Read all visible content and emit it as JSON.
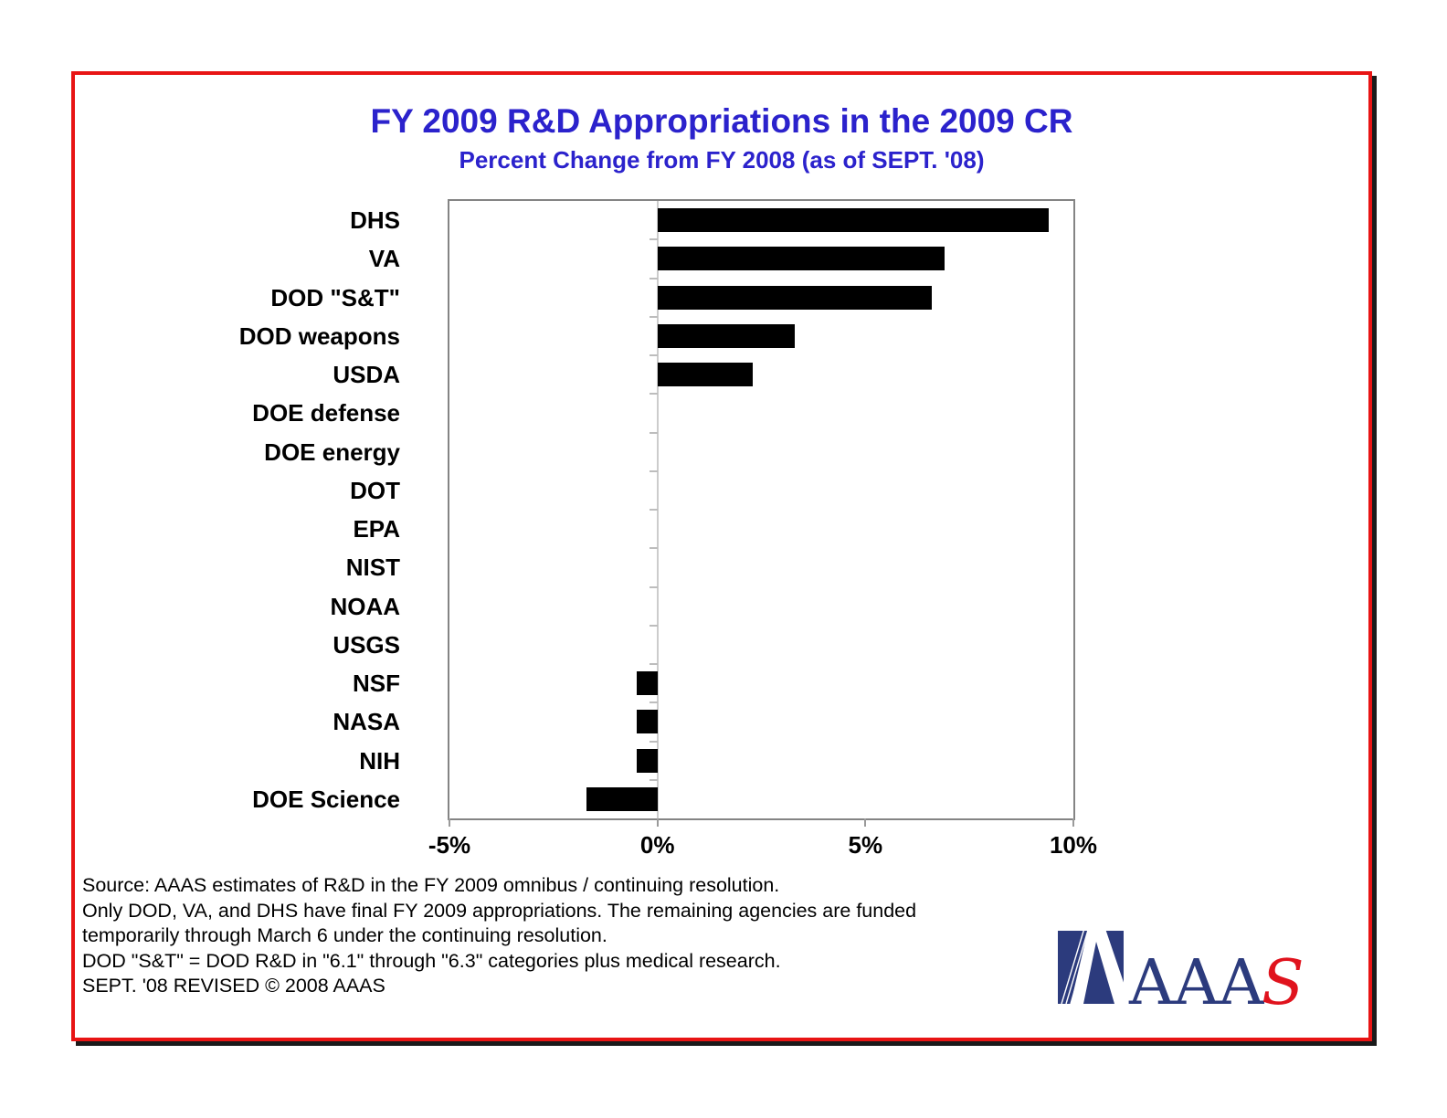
{
  "page": {
    "title": "FY 2009 R&D Appropriations in the 2009 CR",
    "subtitle": "Percent Change from FY 2008 (as of SEPT. '08)"
  },
  "colors": {
    "title_blue": "#2b22cc",
    "bar_black": "#000000",
    "frame_red": "#e81414",
    "plot_border_gray": "#848484",
    "zero_line_gray": "#cccccc",
    "logo_navy": "#2c3b7d",
    "logo_red": "#e0131d"
  },
  "chart_data": {
    "type": "bar",
    "orientation": "horizontal",
    "title": "FY 2009 R&D Appropriations in the 2009 CR",
    "subtitle": "Percent Change from FY 2008 (as of SEPT. '08)",
    "categories": [
      "DHS",
      "VA",
      "DOD \"S&T\"",
      "DOD weapons",
      "USDA",
      "DOE defense",
      "DOE energy",
      "DOT",
      "EPA",
      "NIST",
      "NOAA",
      "USGS",
      "NSF",
      "NASA",
      "NIH",
      "DOE Science"
    ],
    "values": [
      9.4,
      6.9,
      6.6,
      3.3,
      2.3,
      0,
      0,
      0,
      0,
      0,
      0,
      0,
      -0.5,
      -0.5,
      -0.5,
      -1.7
    ],
    "value_unit": "percent",
    "xlim": [
      -5,
      10
    ],
    "xtick_values": [
      -5,
      0,
      5,
      10
    ],
    "xtick_labels": [
      "-5%",
      "0%",
      "5%",
      "10%"
    ],
    "grid": "zero-line-only",
    "legend": "none",
    "bar_color": "#000000"
  },
  "footnotes": [
    "Source: AAAS estimates of R&D in the FY 2009 omnibus / continuing resolution.",
    "Only DOD, VA, and DHS have final FY 2009 appropriations. The remaining agencies are funded",
    "temporarily through March 6 under the continuing resolution.",
    "DOD \"S&T\" = DOD R&D in \"6.1\" through \"6.3\" categories plus medical research.",
    "SEPT. '08 REVISED © 2008  AAAS"
  ],
  "logo": {
    "navy_text": "AAA",
    "red_text": "S"
  }
}
